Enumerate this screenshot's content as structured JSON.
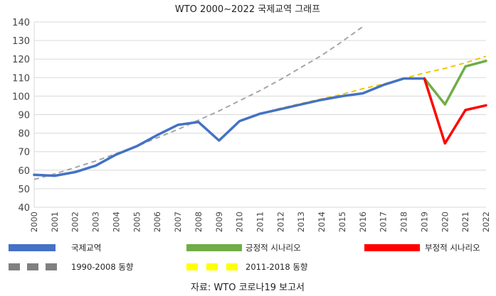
{
  "chart_data": {
    "type": "line",
    "title": "WTO 2000~2022 국제교역 그래프",
    "source": "자료: WTO 코로나19 보고서",
    "xlabel": "",
    "ylabel": "",
    "ylim": [
      40,
      140
    ],
    "y_ticks": [
      40,
      50,
      60,
      70,
      80,
      90,
      100,
      110,
      120,
      130,
      140
    ],
    "x_ticks": [
      "2000",
      "2001",
      "2002",
      "2003",
      "2004",
      "2005",
      "2006",
      "2007",
      "2008",
      "2009",
      "2010",
      "2011",
      "2012",
      "2013",
      "2014",
      "2015",
      "2016",
      "2017",
      "2018",
      "2019",
      "2020",
      "2021",
      "2022"
    ],
    "grid": "horizontal",
    "legend_position": "bottom",
    "series": [
      {
        "name": "국제교역",
        "color": "#4472C4",
        "style": "solid",
        "x": [
          2000,
          2001,
          2002,
          2003,
          2004,
          2005,
          2006,
          2007,
          2008,
          2009,
          2010,
          2011,
          2012,
          2013,
          2014,
          2015,
          2016,
          2017,
          2018,
          2019
        ],
        "y": [
          57.5,
          57,
          59,
          62.5,
          68.5,
          73,
          79,
          84.5,
          86,
          76,
          86.5,
          90.5,
          93,
          95.5,
          98,
          100,
          101.5,
          106,
          109.5,
          109.5
        ]
      },
      {
        "name": "긍정적 시나리오",
        "color": "#70AD47",
        "style": "solid",
        "x": [
          2019,
          2020,
          2021,
          2022
        ],
        "y": [
          109.5,
          95.5,
          116,
          119
        ]
      },
      {
        "name": "부정적 시나리오",
        "color": "#FF0000",
        "style": "solid",
        "x": [
          2019,
          2020,
          2021,
          2022
        ],
        "y": [
          109.5,
          74.5,
          92.5,
          95
        ]
      },
      {
        "name": "1990-2008 동향",
        "color": "#A6A6A6",
        "style": "dashed",
        "x": [
          2000,
          2001,
          2002,
          2003,
          2004,
          2005,
          2006,
          2007,
          2008,
          2009,
          2010,
          2011,
          2012,
          2013,
          2014,
          2015,
          2016
        ],
        "y": [
          55,
          58,
          61.5,
          65,
          69,
          73,
          77.5,
          82,
          87,
          92,
          97.5,
          103,
          109,
          115.5,
          122,
          129.5,
          137.5
        ]
      },
      {
        "name": "2011-2018 동향",
        "color": "#F2C500",
        "style": "dashed",
        "x": [
          2011,
          2012,
          2013,
          2014,
          2015,
          2016,
          2017,
          2018,
          2019,
          2020,
          2021,
          2022
        ],
        "y": [
          90.5,
          93.5,
          96,
          98.5,
          101,
          104,
          106.5,
          109.5,
          112.5,
          115,
          118,
          121.5
        ]
      }
    ],
    "legend": [
      {
        "label": "국제교역",
        "color": "#4472C4",
        "style": "solid"
      },
      {
        "label": "긍정적 시나리오",
        "color": "#70AD47",
        "style": "solid"
      },
      {
        "label": "부정적 시나리오",
        "color": "#FF0000",
        "style": "solid"
      },
      {
        "label": "1990-2008 동향",
        "color": "#808080",
        "style": "dashed"
      },
      {
        "label": "2011-2018 동향",
        "color": "#FFFF00",
        "style": "dashed"
      }
    ]
  }
}
